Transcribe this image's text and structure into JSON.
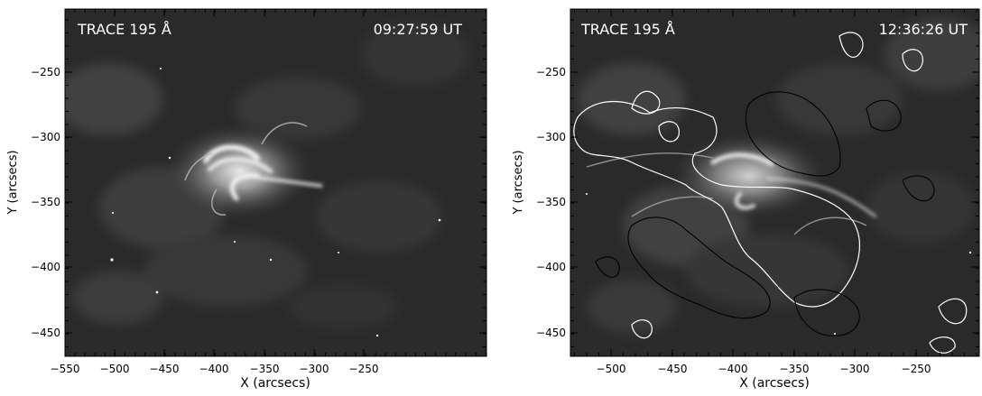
{
  "panels": [
    {
      "instrument_label": "TRACE 195 Å",
      "time_label": "09:27:59 UT",
      "xlabel": "X (arcsecs)",
      "ylabel": "Y (arcsecs)",
      "x_ticks": [
        "−550",
        "−500",
        "−450",
        "−400",
        "−350",
        "−300",
        "−250"
      ],
      "y_ticks": [
        "−250",
        "−300",
        "−350",
        "−400",
        "−450"
      ]
    },
    {
      "instrument_label": "TRACE 195 Å",
      "time_label": "12:36:26 UT",
      "xlabel": "X (arcsecs)",
      "ylabel": "Y (arcsecs)",
      "x_ticks": [
        "−500",
        "−450",
        "−400",
        "−350",
        "−300",
        "−250"
      ],
      "y_ticks": [
        "−250",
        "−300",
        "−350",
        "−400",
        "−450"
      ]
    }
  ],
  "colors": {
    "image_background": "#2a2a2a",
    "loop_bright": "#f2f2f2",
    "contour_positive": "#ffffff",
    "contour_negative": "#000000"
  }
}
